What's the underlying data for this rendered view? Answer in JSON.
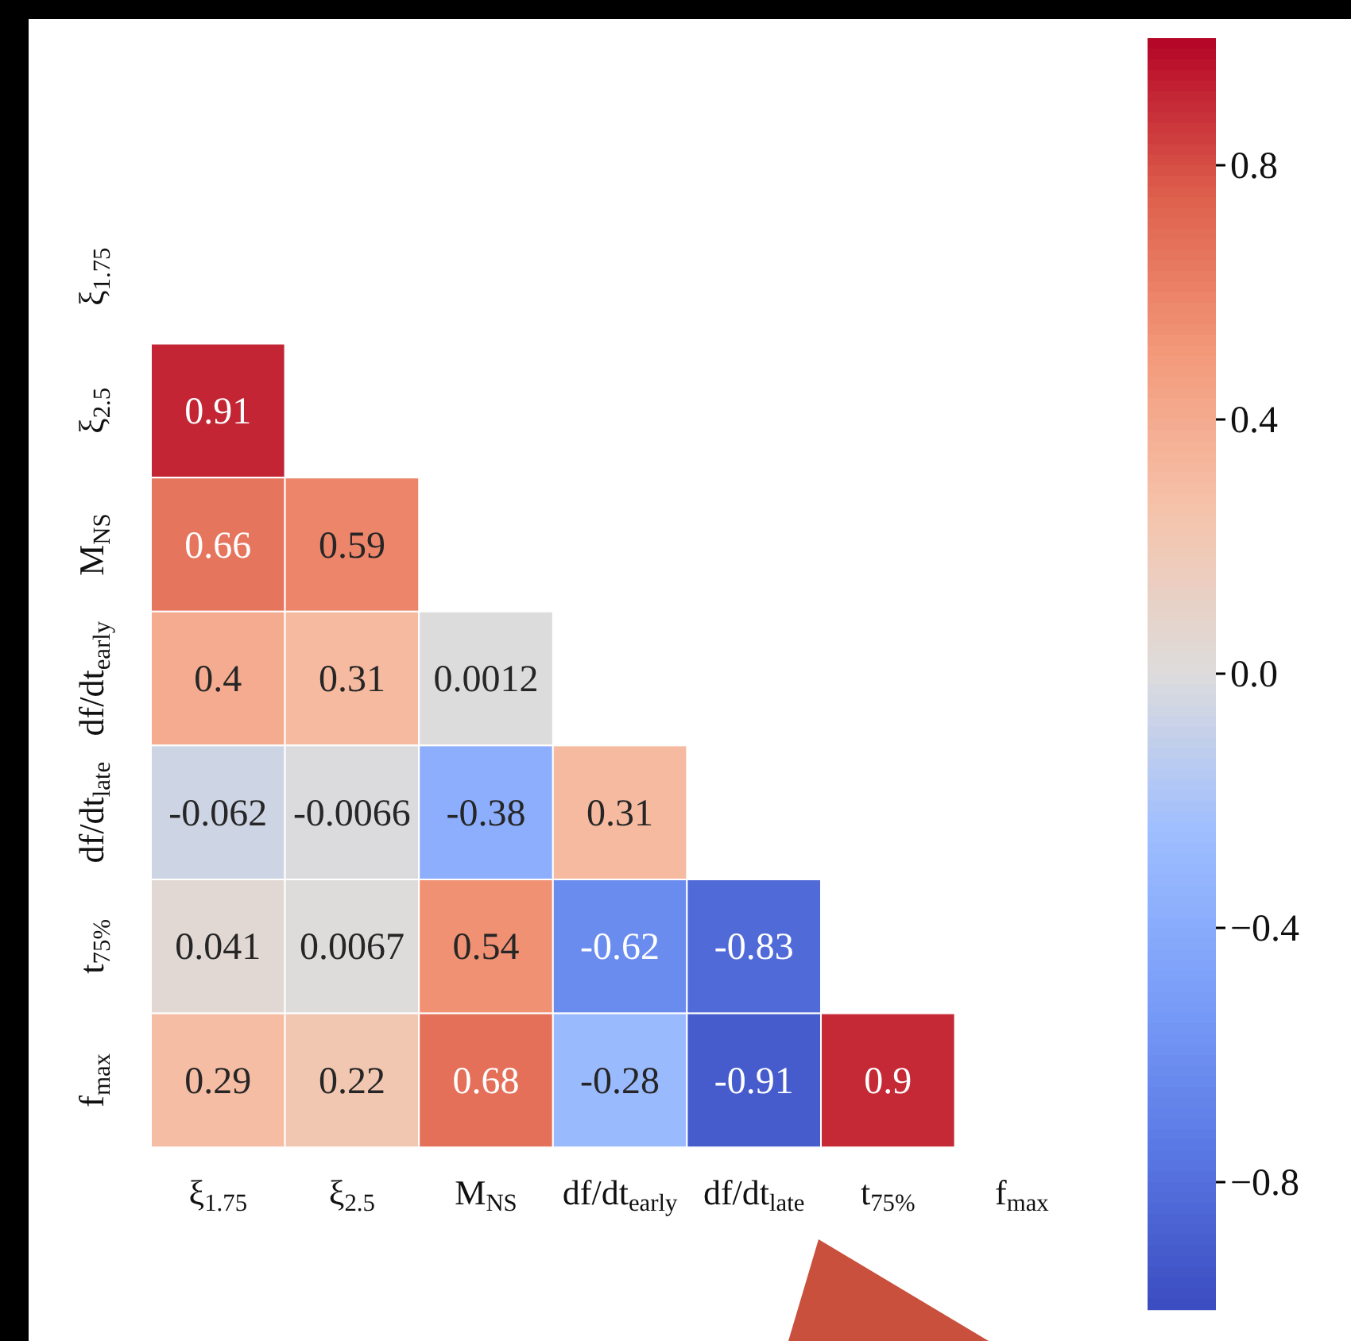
{
  "chart_data": {
    "type": "heatmap",
    "categories": [
      "ξ$_{1.75}$",
      "ξ$_{2.5}$",
      "M$_{NS}$",
      "df/dt$_{early}$",
      "df/dt$_{late}$",
      "t$_{75%}$",
      "f$_{max}$"
    ],
    "y_categories": [
      "ξ$_{1.75}$",
      "ξ$_{2.5}$",
      "M$_{NS}$",
      "df/dt$_{early}$",
      "df/dt$_{late}$",
      "t$_{75%}$",
      "f$_{max}$"
    ],
    "cells": [
      [
        null,
        null,
        null,
        null,
        null,
        null,
        null
      ],
      [
        0.91,
        null,
        null,
        null,
        null,
        null,
        null
      ],
      [
        0.66,
        0.59,
        null,
        null,
        null,
        null,
        null
      ],
      [
        0.4,
        0.31,
        0.0012,
        null,
        null,
        null,
        null
      ],
      [
        -0.062,
        -0.0066,
        -0.38,
        0.31,
        null,
        null,
        null
      ],
      [
        0.041,
        0.0067,
        0.54,
        -0.62,
        -0.83,
        null,
        null
      ],
      [
        0.29,
        0.22,
        0.68,
        -0.28,
        -0.91,
        0.9,
        null
      ]
    ],
    "clim": [
      -1,
      1
    ],
    "cticks": [
      {
        "value": -0.8,
        "label": "−0.8"
      },
      {
        "value": -0.4,
        "label": "−0.4"
      },
      {
        "value": 0,
        "label": "0.0"
      },
      0.4,
      0.8
    ],
    "data_labels": true
  }
}
